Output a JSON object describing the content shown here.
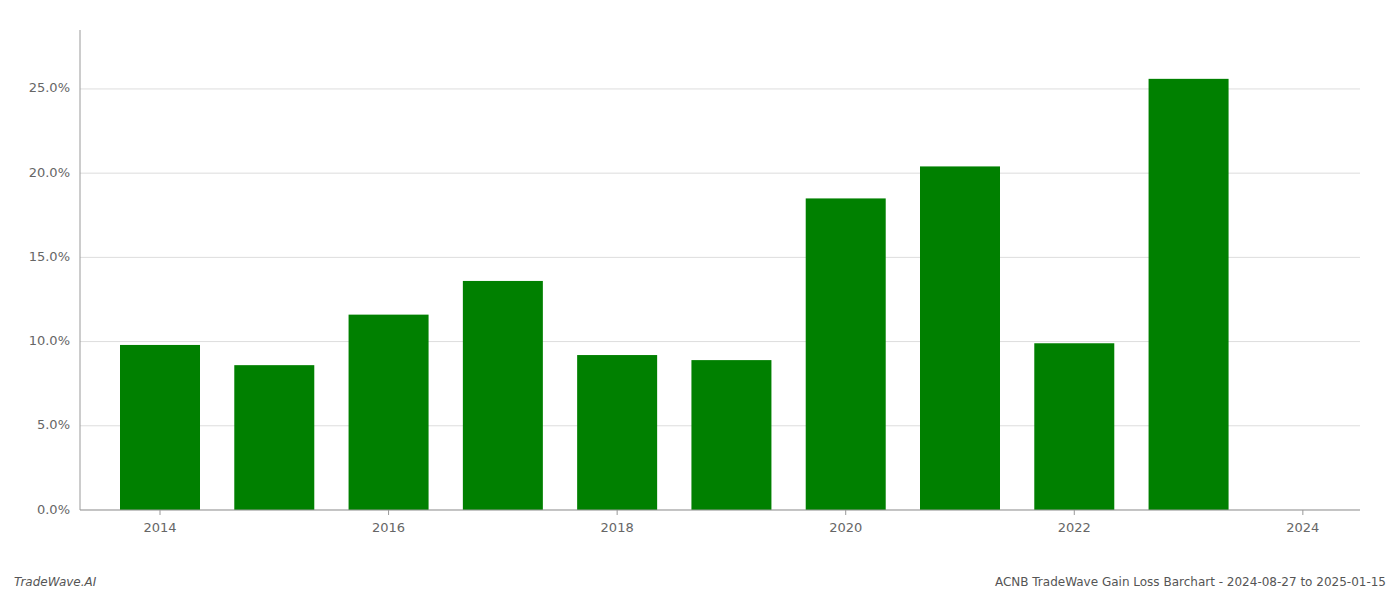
{
  "chart_data": {
    "type": "bar",
    "x": [
      2014,
      2015,
      2016,
      2017,
      2018,
      2019,
      2020,
      2021,
      2022,
      2023
    ],
    "values": [
      0.098,
      0.086,
      0.116,
      0.136,
      0.092,
      0.089,
      0.185,
      0.204,
      0.099,
      0.256
    ],
    "color": "#008000",
    "xlim": [
      2013.3,
      2024.5
    ],
    "xticks": [
      2014,
      2016,
      2018,
      2020,
      2022,
      2024
    ],
    "ylim": [
      0,
      0.285
    ],
    "yticks": [
      {
        "value": 0.0,
        "label": "0.0%"
      },
      {
        "value": 0.05,
        "label": "5.0%"
      },
      {
        "value": 0.1,
        "label": "10.0%"
      },
      {
        "value": 0.15,
        "label": "15.0%"
      },
      {
        "value": 0.2,
        "label": "20.0%"
      },
      {
        "value": 0.25,
        "label": "25.0%"
      }
    ],
    "grid": true,
    "annotations": [
      "TradeWave.AI",
      "ACNB TradeWave Gain Loss Barchart - 2024-08-27 to 2025-01-15"
    ]
  }
}
